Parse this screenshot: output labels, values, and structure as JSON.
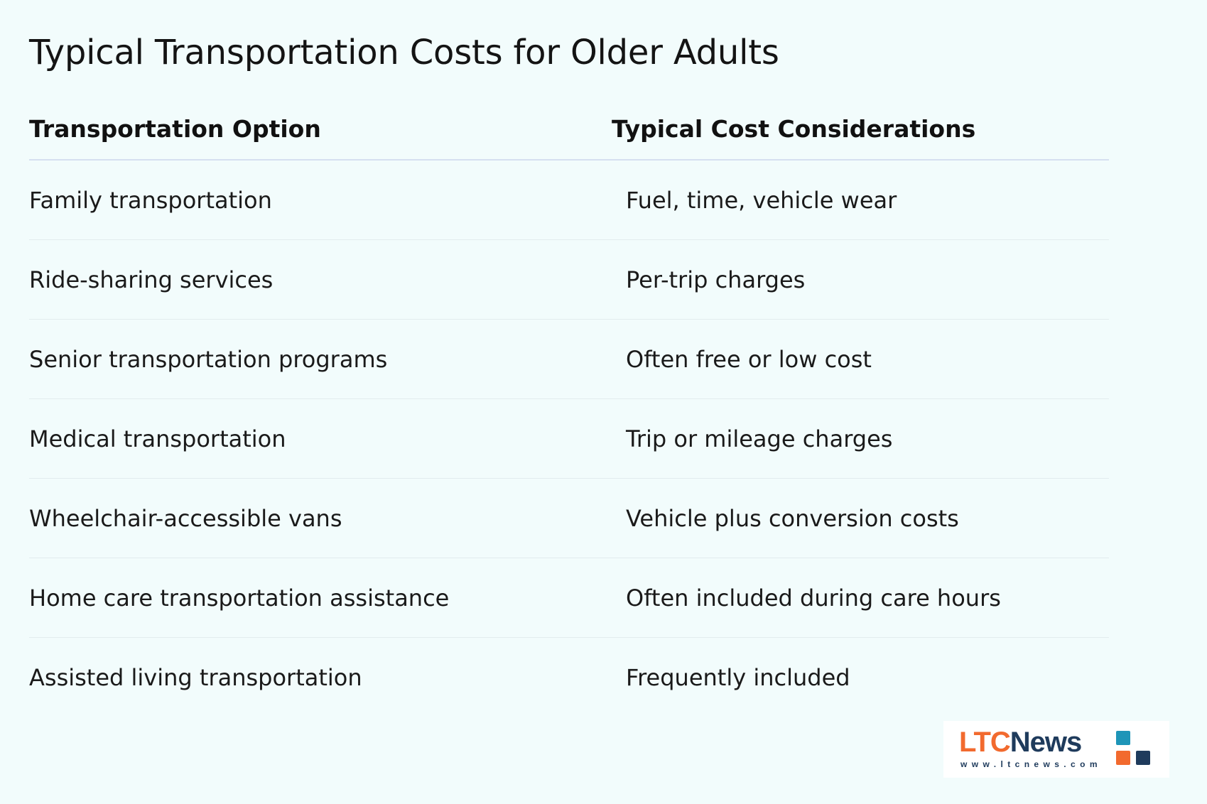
{
  "title": "Typical Transportation Costs for Older Adults",
  "table": {
    "headers": {
      "option": "Transportation Option",
      "cost": "Typical Cost Considerations"
    },
    "rows": [
      {
        "option": "Family transportation",
        "cost": "Fuel, time, vehicle wear"
      },
      {
        "option": "Ride-sharing services",
        "cost": "Per-trip charges"
      },
      {
        "option": "Senior transportation programs",
        "cost": "Often free or low cost"
      },
      {
        "option": "Medical transportation",
        "cost": "Trip or mileage charges"
      },
      {
        "option": "Wheelchair-accessible vans",
        "cost": "Vehicle plus conversion costs"
      },
      {
        "option": "Home care transportation assistance",
        "cost": "Often included during care hours"
      },
      {
        "option": "Assisted living transportation",
        "cost": "Frequently included"
      }
    ]
  },
  "logo": {
    "brand_ltc": "LTC",
    "brand_news": "News",
    "url": "www.ltcnews.com",
    "colors": {
      "orange": "#f26a2e",
      "navy": "#1f3b5c",
      "teal": "#1e95b8"
    }
  }
}
